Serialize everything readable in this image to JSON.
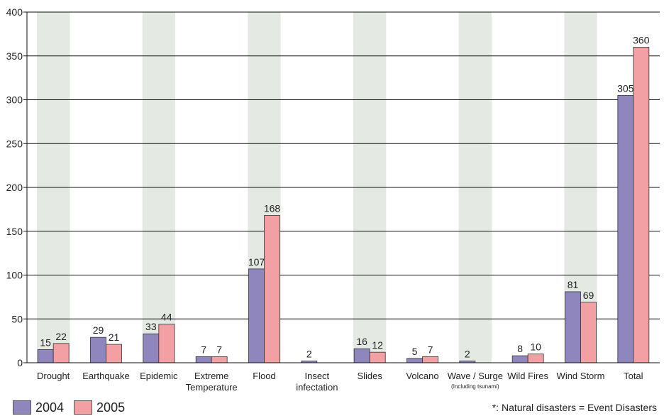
{
  "chart_data": {
    "type": "bar",
    "categories": [
      {
        "label": "Drought"
      },
      {
        "label": "Earthquake"
      },
      {
        "label": "Epidemic"
      },
      {
        "label": "Extreme\nTemperature"
      },
      {
        "label": "Flood"
      },
      {
        "label": "Insect\ninfectation"
      },
      {
        "label": "Slides"
      },
      {
        "label": "Volcano"
      },
      {
        "label": "Wave / Surge",
        "sublabel": "(Including tsunami)"
      },
      {
        "label": "Wild Fires"
      },
      {
        "label": "Wind Storm"
      },
      {
        "label": "Total"
      }
    ],
    "series": [
      {
        "name": "2004",
        "color": "#8e86bd",
        "values": [
          15,
          29,
          33,
          7,
          107,
          2,
          16,
          5,
          2,
          8,
          81,
          305
        ]
      },
      {
        "name": "2005",
        "color": "#f2a0a4",
        "values": [
          22,
          21,
          44,
          7,
          168,
          null,
          12,
          7,
          null,
          10,
          69,
          360
        ]
      }
    ],
    "ylim": [
      0,
      400
    ],
    "yticks": [
      0,
      50,
      100,
      150,
      200,
      250,
      300,
      350,
      400
    ],
    "grid": true,
    "shaded_band_color": "#e4e9e4",
    "legend_position": "bottom-left",
    "footnote": "*: Natural disasters = Event Disasters"
  }
}
